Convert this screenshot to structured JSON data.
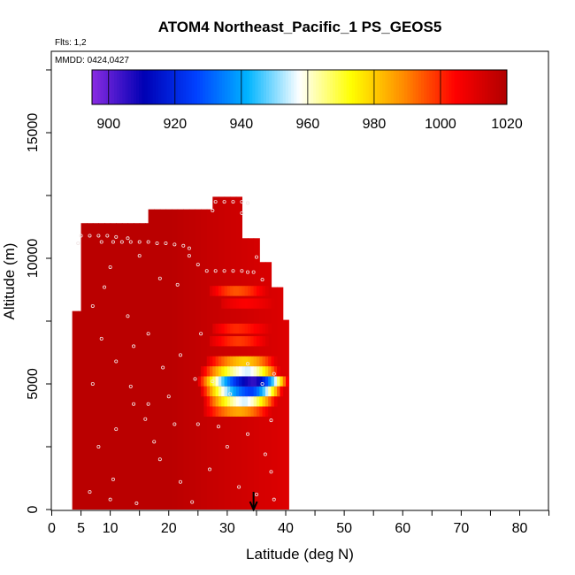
{
  "chart_data": {
    "type": "heatmap",
    "title": "ATOM4 Northeast_Pacific_1 PS_GEOS5",
    "flights_label": "Flts: 1,2",
    "dates_label": "MMDD: 0424,0427",
    "xlabel": "Latitude (deg N)",
    "ylabel": "Altitude (m)",
    "xlim": [
      0,
      85
    ],
    "ylim": [
      0,
      17500
    ],
    "x_ticks": [
      0,
      5,
      10,
      20,
      30,
      40,
      50,
      60,
      70,
      80
    ],
    "y_ticks": [
      0,
      5000,
      10000,
      15000
    ],
    "colorbar": {
      "min": 895,
      "max": 1020,
      "ticks": [
        900,
        920,
        940,
        960,
        980,
        1000,
        1020
      ],
      "colors": [
        "#8a2be2",
        "#0000b4",
        "#0040ff",
        "#00b4ff",
        "#ffffff",
        "#ffff00",
        "#ff8c00",
        "#ff0000",
        "#b00000"
      ]
    },
    "arrow_latitude": 34.5,
    "background_value": 1015,
    "columns": [
      {
        "lat_from": 3.5,
        "lat_to": 5.0,
        "alt_max": 7900
      },
      {
        "lat_from": 5.0,
        "lat_to": 16.5,
        "alt_max": 11400
      },
      {
        "lat_from": 16.5,
        "lat_to": 27.5,
        "alt_max": 11950
      },
      {
        "lat_from": 27.5,
        "lat_to": 32.5,
        "alt_max": 12450
      },
      {
        "lat_from": 32.5,
        "lat_to": 35.5,
        "alt_max": 10800
      },
      {
        "lat_from": 35.5,
        "lat_to": 37.5,
        "alt_max": 9850
      },
      {
        "lat_from": 37.5,
        "lat_to": 39.5,
        "alt_max": 8850
      },
      {
        "lat_from": 39.5,
        "lat_to": 40.5,
        "alt_max": 7550
      }
    ],
    "anomaly_bands": [
      {
        "alt": 8700,
        "lat_from": 27.0,
        "lat_to": 37.0,
        "center_lat": 31.5,
        "min_value": 995
      },
      {
        "alt": 8200,
        "lat_from": 29.0,
        "lat_to": 38.0,
        "center_lat": 33.0,
        "min_value": 1005
      },
      {
        "alt": 7200,
        "lat_from": 27.5,
        "lat_to": 37.5,
        "center_lat": 31.5,
        "min_value": 1000
      },
      {
        "alt": 6700,
        "lat_from": 27.0,
        "lat_to": 37.0,
        "center_lat": 32.0,
        "min_value": 998
      },
      {
        "alt": 5900,
        "lat_from": 26.5,
        "lat_to": 38.5,
        "center_lat": 33.0,
        "min_value": 980
      },
      {
        "alt": 5500,
        "lat_from": 25.5,
        "lat_to": 39.0,
        "center_lat": 33.5,
        "min_value": 955
      },
      {
        "alt": 5100,
        "lat_from": 25.0,
        "lat_to": 40.5,
        "center_lat": 34.5,
        "min_value": 905
      },
      {
        "alt": 4700,
        "lat_from": 25.5,
        "lat_to": 39.5,
        "center_lat": 34.0,
        "min_value": 925
      },
      {
        "alt": 4300,
        "lat_from": 26.0,
        "lat_to": 38.5,
        "center_lat": 33.0,
        "min_value": 955
      },
      {
        "alt": 3900,
        "lat_from": 26.0,
        "lat_to": 37.5,
        "center_lat": 32.0,
        "min_value": 985
      }
    ],
    "flight_points": [
      [
        5.0,
        10900
      ],
      [
        6.5,
        10900
      ],
      [
        8.0,
        10900
      ],
      [
        9.5,
        10900
      ],
      [
        11.0,
        10850
      ],
      [
        13.0,
        10800
      ],
      [
        4.5,
        10600
      ],
      [
        8.5,
        10650
      ],
      [
        10.5,
        10650
      ],
      [
        12.0,
        10650
      ],
      [
        13.5,
        10650
      ],
      [
        15.0,
        10650
      ],
      [
        16.5,
        10650
      ],
      [
        18.0,
        10600
      ],
      [
        19.5,
        10600
      ],
      [
        21.0,
        10550
      ],
      [
        22.5,
        10500
      ],
      [
        15.0,
        10100
      ],
      [
        23.5,
        10100
      ],
      [
        25.0,
        9750
      ],
      [
        26.5,
        9500
      ],
      [
        28.0,
        9500
      ],
      [
        29.5,
        9500
      ],
      [
        31.0,
        9500
      ],
      [
        32.5,
        9500
      ],
      [
        33.5,
        9450
      ],
      [
        34.5,
        9450
      ],
      [
        28.0,
        12250
      ],
      [
        29.5,
        12250
      ],
      [
        31.0,
        12250
      ],
      [
        32.5,
        12250
      ],
      [
        33.5,
        12200
      ],
      [
        27.5,
        11900
      ],
      [
        32.5,
        11800
      ],
      [
        35.0,
        10050
      ],
      [
        36.0,
        9150
      ],
      [
        10.0,
        9650
      ],
      [
        23.5,
        10400
      ],
      [
        18.5,
        9200
      ],
      [
        21.5,
        8950
      ],
      [
        13.0,
        7700
      ],
      [
        7.0,
        8100
      ],
      [
        9.0,
        8850
      ],
      [
        14.0,
        6500
      ],
      [
        16.5,
        7000
      ],
      [
        19.0,
        5650
      ],
      [
        22.0,
        6150
      ],
      [
        25.5,
        7000
      ],
      [
        27.5,
        5100
      ],
      [
        30.5,
        4600
      ],
      [
        33.5,
        5800
      ],
      [
        36.0,
        5000
      ],
      [
        38.0,
        5400
      ],
      [
        37.5,
        3550
      ],
      [
        24.5,
        5200
      ],
      [
        20.0,
        4500
      ],
      [
        16.0,
        3600
      ],
      [
        14.0,
        4200
      ],
      [
        11.0,
        3200
      ],
      [
        8.0,
        2500
      ],
      [
        10.5,
        1200
      ],
      [
        6.5,
        700
      ],
      [
        10.0,
        400
      ],
      [
        14.5,
        250
      ],
      [
        18.5,
        2000
      ],
      [
        22.0,
        1100
      ],
      [
        24.0,
        300
      ],
      [
        27.0,
        1600
      ],
      [
        30.0,
        2500
      ],
      [
        32.0,
        900
      ],
      [
        35.0,
        600
      ],
      [
        38.0,
        400
      ],
      [
        7.0,
        5000
      ],
      [
        8.5,
        6800
      ],
      [
        11.0,
        5900
      ],
      [
        13.5,
        4900
      ],
      [
        16.5,
        4200
      ],
      [
        17.5,
        2700
      ],
      [
        21.0,
        3400
      ],
      [
        25.0,
        3400
      ],
      [
        28.5,
        3300
      ],
      [
        33.5,
        3000
      ],
      [
        36.5,
        2200
      ],
      [
        37.5,
        1500
      ]
    ]
  }
}
